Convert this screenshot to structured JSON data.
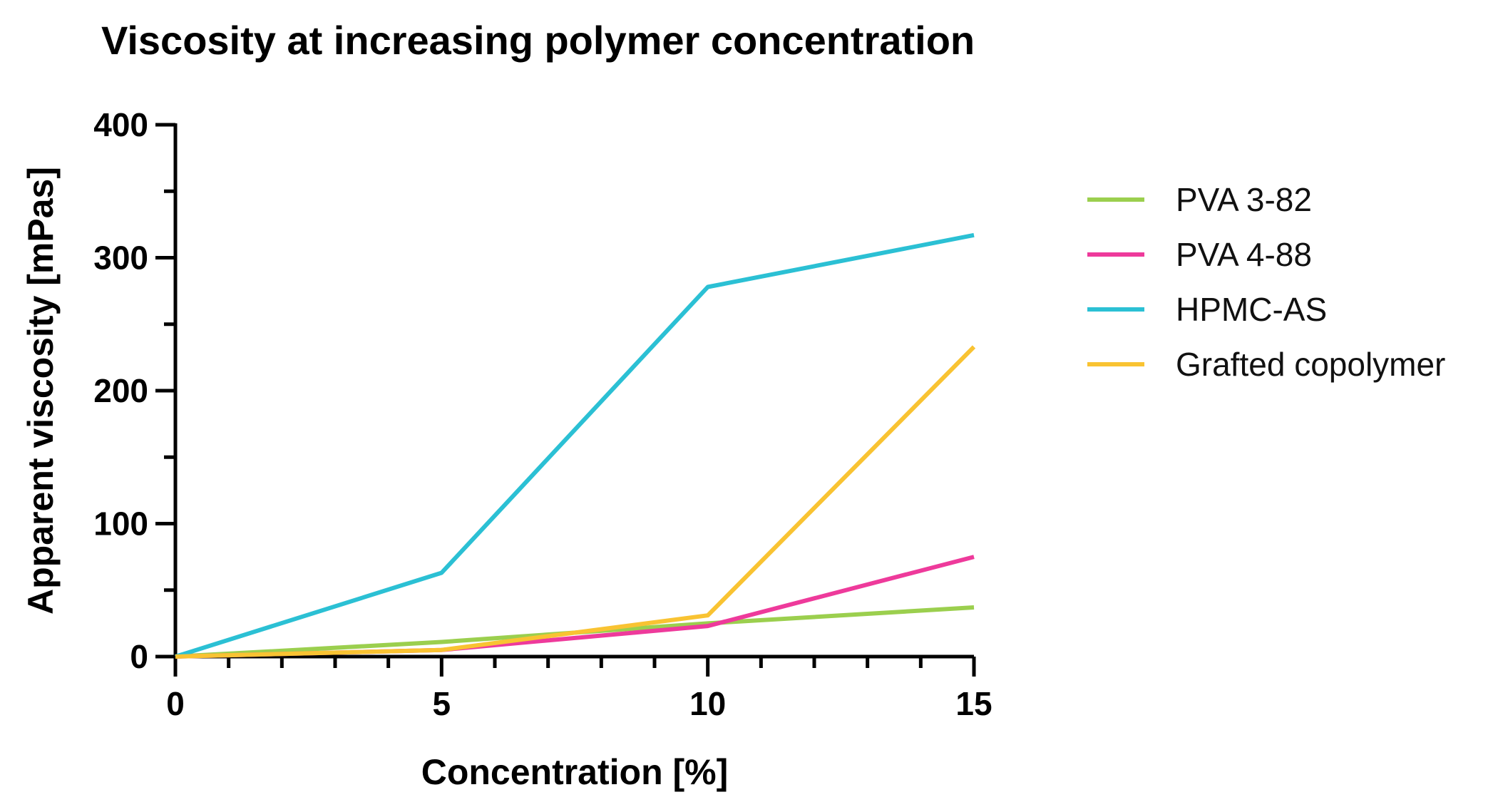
{
  "chart_data": {
    "type": "line",
    "title": "Viscosity at increasing polymer concentration",
    "xlabel": "Concentration [%]",
    "ylabel": "Apparent viscosity [mPas]",
    "xlim": [
      0,
      15
    ],
    "ylim": [
      0,
      400
    ],
    "x_major_ticks": [
      0,
      5,
      10,
      15
    ],
    "x_minor_step": 1,
    "y_major_ticks": [
      0,
      100,
      200,
      300,
      400
    ],
    "y_minor_step": 50,
    "grid": false,
    "legend_position": "right",
    "x": [
      0,
      5,
      10,
      15
    ],
    "series": [
      {
        "name": "PVA 3-82",
        "color": "#9BCF4E",
        "values": [
          0,
          11,
          25,
          37
        ]
      },
      {
        "name": "PVA 4-88",
        "color": "#EE3A9B",
        "values": [
          0,
          5,
          23,
          75
        ]
      },
      {
        "name": "HPMC-AS",
        "color": "#2BC0D4",
        "values": [
          0,
          63,
          278,
          317
        ]
      },
      {
        "name": "Grafted copolymer",
        "color": "#F9C332",
        "values": [
          0,
          5,
          31,
          233
        ]
      }
    ]
  }
}
